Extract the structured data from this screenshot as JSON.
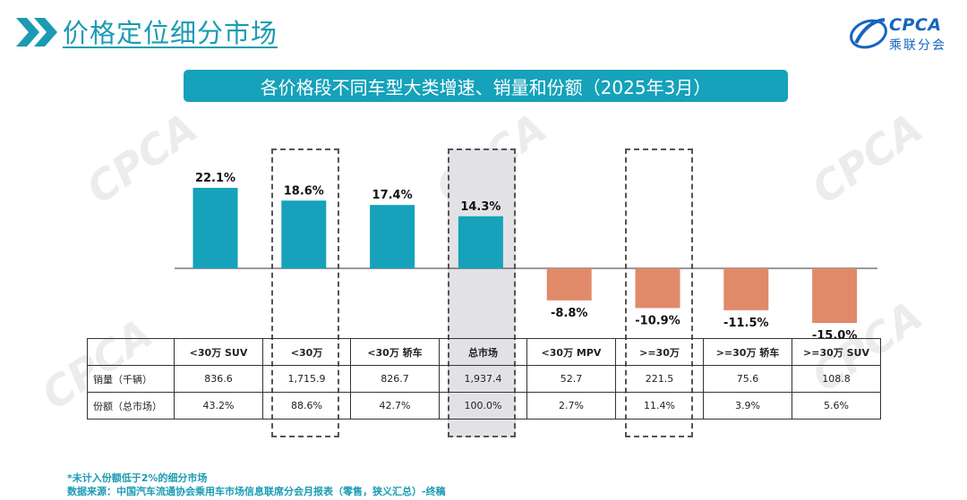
{
  "header": {
    "title": "价格定位细分市场",
    "logo_text": "CPCA",
    "logo_subtitle": "乘联分会"
  },
  "banner": {
    "title": "各价格段不同车型大类增速、销量和份额（2025年3月）"
  },
  "colors": {
    "accent": "#15a2ba",
    "positive_bar": "#15a2ba",
    "negative_bar": "#e08a6a"
  },
  "chart_data": {
    "type": "bar",
    "title": "各价格段不同车型大类增速、销量和份额（2025年3月）",
    "categories": [
      "<30万 SUV",
      "<30万",
      "<30万 轿车",
      "总市场",
      "<30万 MPV",
      ">=30万",
      ">=30万 轿车",
      ">=30万 SUV"
    ],
    "values": [
      22.1,
      18.6,
      17.4,
      14.3,
      -8.8,
      -10.9,
      -11.5,
      -15.0
    ],
    "value_labels": [
      "22.1%",
      "18.6%",
      "17.4%",
      "14.3%",
      "-8.8%",
      "-10.9%",
      "-11.5%",
      "-15.0%"
    ],
    "unit": "%",
    "ylim": [
      -15.0,
      22.1
    ],
    "highlighted_categories": [
      "<30万",
      "总市场",
      ">=30万"
    ],
    "shaded_category": "总市场"
  },
  "table": {
    "rows": [
      {
        "label": "销量（千辆）",
        "values": [
          "836.6",
          "1,715.9",
          "826.7",
          "1,937.4",
          "52.7",
          "221.5",
          "75.6",
          "108.8"
        ]
      },
      {
        "label": "份额（总市场）",
        "values": [
          "43.2%",
          "88.6%",
          "42.7%",
          "100.0%",
          "2.7%",
          "11.4%",
          "3.9%",
          "5.6%"
        ]
      }
    ]
  },
  "footnotes": {
    "note": "*未计入份额低于2%的细分市场",
    "source": "数据来源：中国汽车流通协会乘用车市场信息联席分会月报表（零售，狭义汇总）-终稿"
  }
}
